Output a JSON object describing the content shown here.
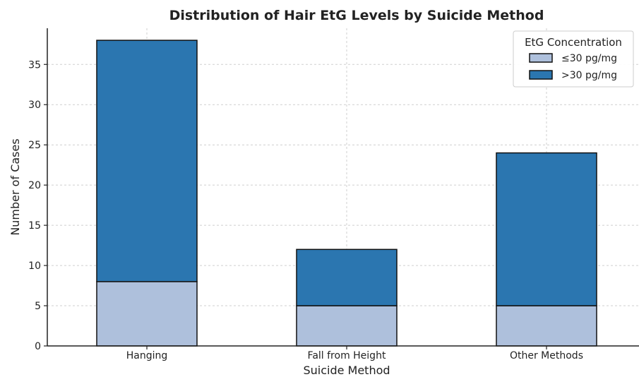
{
  "chart_data": {
    "type": "bar",
    "stacked": true,
    "title": "Distribution of Hair EtG Levels by Suicide Method",
    "xlabel": "Suicide Method",
    "ylabel": "Number of Cases",
    "categories": [
      "Hanging",
      "Fall from Height",
      "Other Methods"
    ],
    "series": [
      {
        "name": "≤30 pg/mg",
        "values": [
          8,
          5,
          5
        ],
        "color": "#aec0dc"
      },
      {
        "name": ">30 pg/mg",
        "values": [
          30,
          7,
          19
        ],
        "color": "#2b76b0"
      }
    ],
    "ylim": [
      0,
      39.5
    ],
    "yticks": [
      0,
      5,
      10,
      15,
      20,
      25,
      30,
      35
    ],
    "grid": true,
    "legend": {
      "title": "EtG Concentration",
      "position": "top-right"
    }
  }
}
